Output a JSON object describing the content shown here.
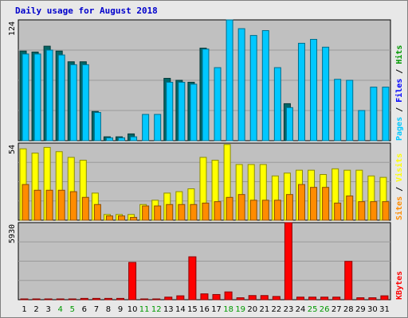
{
  "chart_data": {
    "type": "bar",
    "title": "Daily usage for August 2018",
    "categories": [
      "1",
      "2",
      "3",
      "4",
      "5",
      "6",
      "7",
      "8",
      "9",
      "10",
      "11",
      "12",
      "13",
      "14",
      "15",
      "16",
      "17",
      "18",
      "19",
      "20",
      "21",
      "22",
      "23",
      "24",
      "25",
      "26",
      "27",
      "28",
      "29",
      "30",
      "31"
    ],
    "weekend_days": [
      "4",
      "5",
      "11",
      "12",
      "18",
      "19",
      "25",
      "26"
    ],
    "colors": {
      "hits": "#006666",
      "files": "#00c8ff",
      "pages": "#00c8ff",
      "visits": "#ffff00",
      "sites": "#ff8c00",
      "kbytes": "#ff0000",
      "plot_bg": "#c0c0c0",
      "frame_bg": "#e8e8e8",
      "weekend_label": "#009900",
      "weekday_label": "#000000"
    },
    "panels": [
      {
        "name": "hits-files-pages",
        "ymax_label": "124",
        "ymax": 124,
        "series_labels": [
          "Pages",
          "Files",
          "Hits"
        ],
        "series_label_colors": [
          "#00c8ff",
          "#0000ff",
          "#009900"
        ],
        "series": [
          {
            "key": "hits",
            "values": [
              92,
              91,
              97,
              92,
              81,
              81,
              30,
              4,
              4,
              7,
              0,
              0,
              64,
              62,
              60,
              95,
              0,
              0,
              0,
              0,
              0,
              0,
              38,
              0,
              0,
              0,
              0,
              0,
              0,
              0,
              0
            ]
          },
          {
            "key": "files",
            "values": [
              89,
              89,
              93,
              88,
              78,
              78,
              29,
              3,
              3,
              4,
              27,
              27,
              60,
              60,
              58,
              94,
              75,
              128,
              115,
              108,
              113,
              75,
              34,
              100,
              104,
              96,
              63,
              62,
              31,
              55,
              55
            ]
          }
        ]
      },
      {
        "name": "visits-sites",
        "ymax_label": "54",
        "ymax": 54,
        "series_labels": [
          "Sites",
          "Visits"
        ],
        "series_label_colors": [
          "#ff8c00",
          "#ffff00"
        ],
        "series": [
          {
            "key": "visits",
            "values": [
              50,
              47,
              51,
              48,
              44,
              42,
              19,
              4,
              4,
              4,
              11,
              14,
              19,
              20,
              22,
              44,
              42,
              53,
              39,
              39,
              39,
              31,
              33,
              35,
              35,
              32,
              36,
              35,
              35,
              31,
              30
            ]
          },
          {
            "key": "sites",
            "values": [
              25,
              21,
              21,
              21,
              20,
              16,
              11,
              3,
              3,
              2,
              10,
              10,
              11,
              11,
              11,
              12,
              13,
              16,
              18,
              14,
              14,
              14,
              18,
              25,
              23,
              23,
              12,
              17,
              13,
              13,
              13
            ]
          }
        ]
      },
      {
        "name": "kbytes",
        "ymax_label": "5930",
        "ymax": 5930,
        "series_labels": [
          "KBytes"
        ],
        "series_label_colors": [
          "#ff0000"
        ],
        "series": [
          {
            "key": "kbytes",
            "values": [
              60,
              60,
              60,
              60,
              60,
              100,
              100,
              100,
              100,
              2870,
              40,
              40,
              200,
              300,
              3300,
              450,
              400,
              600,
              150,
              320,
              320,
              250,
              5930,
              200,
              200,
              200,
              200,
              2950,
              150,
              150,
              300
            ]
          }
        ]
      }
    ]
  }
}
